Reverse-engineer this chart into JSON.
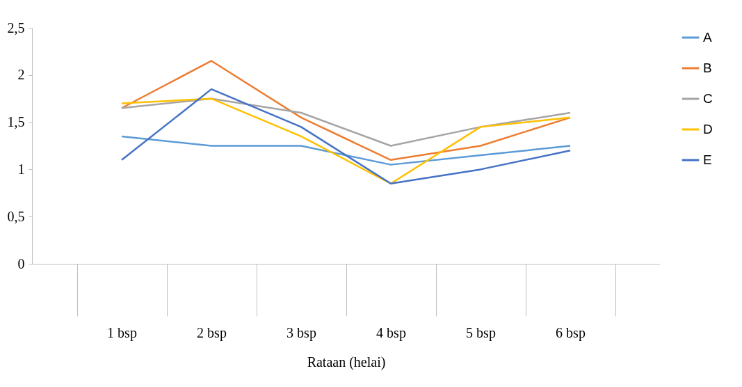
{
  "chart_data": {
    "type": "line",
    "xlabel": "Rataan (helai)",
    "categories": [
      "1 bsp",
      "2 bsp",
      "3 bsp",
      "4 bsp",
      "5 bsp",
      "6 bsp"
    ],
    "series": [
      {
        "name": "A",
        "color": "#5b9bd5",
        "values": [
          1.35,
          1.25,
          1.25,
          1.05,
          1.15,
          1.25
        ]
      },
      {
        "name": "B",
        "color": "#ed7d31",
        "values": [
          1.65,
          2.15,
          1.55,
          1.1,
          1.25,
          1.55
        ]
      },
      {
        "name": "C",
        "color": "#a5a5a5",
        "values": [
          1.65,
          1.75,
          1.6,
          1.25,
          1.45,
          1.6
        ]
      },
      {
        "name": "D",
        "color": "#ffc000",
        "values": [
          1.7,
          1.75,
          1.35,
          0.85,
          1.45,
          1.55
        ]
      },
      {
        "name": "E",
        "color": "#4472c4",
        "values": [
          1.1,
          1.85,
          1.45,
          0.85,
          1.0,
          1.2
        ]
      }
    ],
    "ylim": [
      0,
      2.5
    ],
    "yticks": [
      0,
      {
        "value": 0.5,
        "label": "0,5"
      },
      1,
      {
        "value": 1.5,
        "label": "1,5"
      },
      2,
      {
        "value": 2.5,
        "label": "2,5"
      }
    ],
    "grid": false,
    "legend": "right",
    "marker": "none",
    "line_style": "solid"
  }
}
